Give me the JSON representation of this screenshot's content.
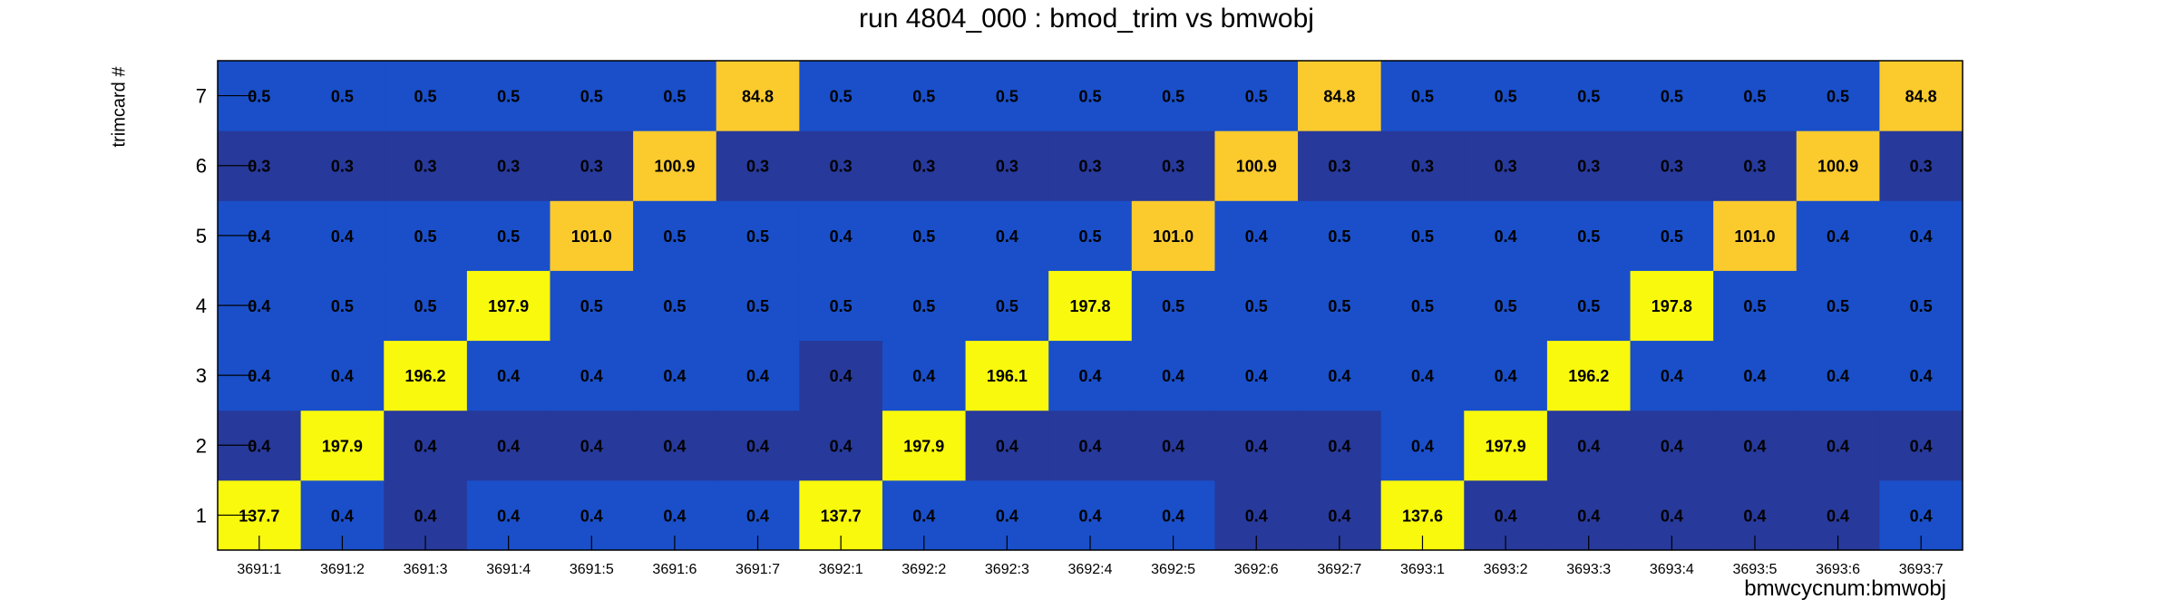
{
  "chart_data": {
    "type": "heatmap",
    "title": "run 4804_000 : bmod_trim vs bmwobj",
    "xlabel": "bmwcycnum:bmwobj",
    "ylabel": "trimcard #",
    "x_categories": [
      "3691:1",
      "3691:2",
      "3691:3",
      "3691:4",
      "3691:5",
      "3691:6",
      "3691:7",
      "3692:1",
      "3692:2",
      "3692:3",
      "3692:4",
      "3692:5",
      "3692:6",
      "3692:7",
      "3693:1",
      "3693:2",
      "3693:3",
      "3693:4",
      "3693:5",
      "3693:6",
      "3693:7"
    ],
    "y_categories": [
      "1",
      "2",
      "3",
      "4",
      "5",
      "6",
      "7"
    ],
    "values": [
      [
        137.7,
        0.4,
        0.4,
        0.4,
        0.4,
        0.4,
        0.4,
        137.7,
        0.4,
        0.4,
        0.4,
        0.4,
        0.4,
        0.4,
        137.6,
        0.4,
        0.4,
        0.4,
        0.4,
        0.4,
        0.4
      ],
      [
        0.4,
        197.9,
        0.4,
        0.4,
        0.4,
        0.4,
        0.4,
        0.4,
        197.9,
        0.4,
        0.4,
        0.4,
        0.4,
        0.4,
        0.4,
        197.9,
        0.4,
        0.4,
        0.4,
        0.4,
        0.4
      ],
      [
        0.4,
        0.4,
        196.2,
        0.4,
        0.4,
        0.4,
        0.4,
        0.4,
        0.4,
        196.1,
        0.4,
        0.4,
        0.4,
        0.4,
        0.4,
        0.4,
        196.2,
        0.4,
        0.4,
        0.4,
        0.4
      ],
      [
        0.4,
        0.5,
        0.5,
        197.9,
        0.5,
        0.5,
        0.5,
        0.5,
        0.5,
        0.5,
        197.8,
        0.5,
        0.5,
        0.5,
        0.5,
        0.5,
        0.5,
        197.8,
        0.5,
        0.5,
        0.5
      ],
      [
        0.4,
        0.4,
        0.5,
        0.5,
        101.0,
        0.5,
        0.5,
        0.4,
        0.5,
        0.4,
        0.5,
        101.0,
        0.4,
        0.5,
        0.5,
        0.4,
        0.5,
        0.5,
        101.0,
        0.4,
        0.4
      ],
      [
        0.3,
        0.3,
        0.3,
        0.3,
        0.3,
        100.9,
        0.3,
        0.3,
        0.3,
        0.3,
        0.3,
        0.3,
        100.9,
        0.3,
        0.3,
        0.3,
        0.3,
        0.3,
        0.3,
        100.9,
        0.3
      ],
      [
        0.5,
        0.5,
        0.5,
        0.5,
        0.5,
        0.5,
        84.8,
        0.5,
        0.5,
        0.5,
        0.5,
        0.5,
        0.5,
        84.8,
        0.5,
        0.5,
        0.5,
        0.5,
        0.5,
        0.5,
        84.8
      ]
    ],
    "colors": {
      "low_dark": "#27399a",
      "low_mid": "#1a4fc9",
      "mid_gold": "#fbcb2e",
      "high_yellow": "#f9f90d"
    },
    "grid": false,
    "legend": "none"
  }
}
